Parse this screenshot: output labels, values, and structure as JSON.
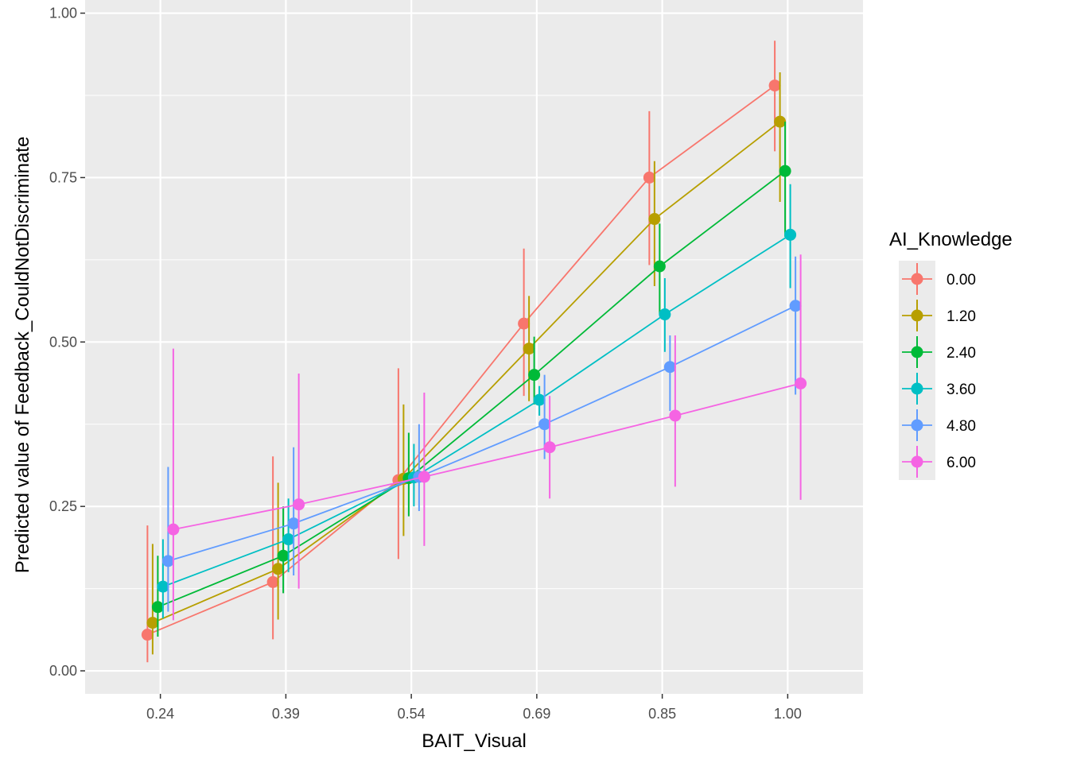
{
  "chart_data": {
    "type": "line",
    "title": "",
    "xlabel": "BAIT_Visual",
    "ylabel": "Predicted value of Feedback_CouldNotDiscriminate",
    "x": [
      0.24,
      0.39,
      0.54,
      0.69,
      0.85,
      1.0
    ],
    "x_tick_labels": [
      "0.24",
      "0.39",
      "0.54",
      "0.69",
      "0.85",
      "1.00"
    ],
    "y_ticks": [
      0.0,
      0.25,
      0.5,
      0.75,
      1.0
    ],
    "y_tick_labels": [
      "0.00",
      "0.25",
      "0.50",
      "0.75",
      "1.00"
    ],
    "ylim": [
      -0.035,
      1.02
    ],
    "xlim": [
      0.1475,
      1.0925
    ],
    "grid": true,
    "legend": {
      "title": "AI_Knowledge",
      "position": "right"
    },
    "series": [
      {
        "name": "0.00",
        "color": "#F8766D",
        "values": [
          0.055,
          0.135,
          0.29,
          0.528,
          0.75,
          0.89
        ],
        "lower": [
          0.013,
          0.048,
          0.17,
          0.418,
          0.617,
          0.79
        ],
        "upper": [
          0.221,
          0.326,
          0.46,
          0.642,
          0.851,
          0.958
        ]
      },
      {
        "name": "1.20",
        "color": "#B79F00",
        "values": [
          0.073,
          0.155,
          0.292,
          0.49,
          0.687,
          0.835
        ],
        "lower": [
          0.025,
          0.078,
          0.205,
          0.41,
          0.585,
          0.713
        ],
        "upper": [
          0.193,
          0.286,
          0.405,
          0.57,
          0.775,
          0.91
        ]
      },
      {
        "name": "2.40",
        "color": "#00BA38",
        "values": [
          0.097,
          0.175,
          0.293,
          0.45,
          0.615,
          0.76
        ],
        "lower": [
          0.052,
          0.118,
          0.235,
          0.405,
          0.542,
          0.66
        ],
        "upper": [
          0.175,
          0.25,
          0.362,
          0.508,
          0.68,
          0.835
        ]
      },
      {
        "name": "3.60",
        "color": "#00BFC4",
        "values": [
          0.128,
          0.2,
          0.294,
          0.412,
          0.542,
          0.663
        ],
        "lower": [
          0.08,
          0.15,
          0.25,
          0.388,
          0.485,
          0.582
        ],
        "upper": [
          0.2,
          0.262,
          0.345,
          0.433,
          0.597,
          0.74
        ]
      },
      {
        "name": "4.80",
        "color": "#619CFF",
        "values": [
          0.167,
          0.224,
          0.295,
          0.375,
          0.462,
          0.555
        ],
        "lower": [
          0.09,
          0.145,
          0.243,
          0.322,
          0.395,
          0.42
        ],
        "upper": [
          0.31,
          0.34,
          0.375,
          0.45,
          0.51,
          0.63
        ]
      },
      {
        "name": "6.00",
        "color": "#F564E3",
        "values": [
          0.215,
          0.253,
          0.295,
          0.34,
          0.388,
          0.437
        ],
        "lower": [
          0.077,
          0.125,
          0.19,
          0.262,
          0.28,
          0.26
        ],
        "upper": [
          0.49,
          0.452,
          0.423,
          0.418,
          0.51,
          0.633
        ]
      }
    ]
  }
}
